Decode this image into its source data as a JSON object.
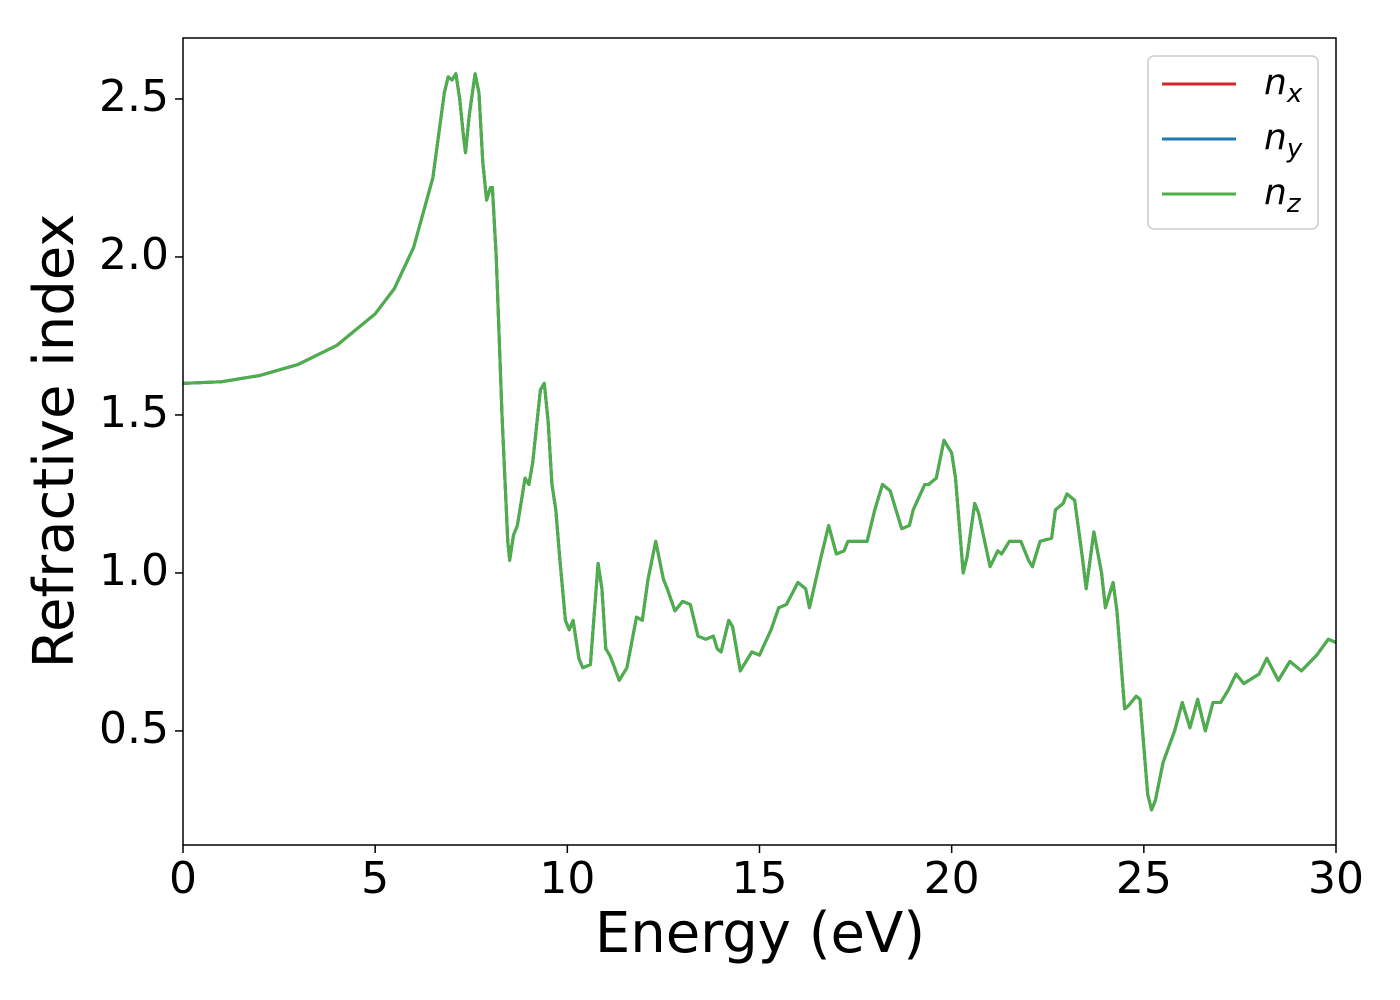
{
  "chart_data": {
    "type": "line",
    "xlabel": "Energy (eV)",
    "ylabel": "Refractive index",
    "xlim": [
      0,
      30
    ],
    "ylim": [
      0.139,
      2.693
    ],
    "xticks": [
      0,
      5,
      10,
      15,
      20,
      25,
      30
    ],
    "yticks": [
      0.5,
      {
        "value": 1,
        "label": "1.0"
      },
      1.5,
      {
        "value": 2,
        "label": "2.0"
      },
      2.5
    ],
    "legend": "upper right",
    "x": [
      0,
      1,
      2,
      3,
      4,
      5,
      5.5,
      6,
      6.5,
      6.8,
      6.9,
      7.0,
      7.1,
      7.2,
      7.3,
      7.35,
      7.45,
      7.6,
      7.7,
      7.8,
      7.9,
      8.0,
      8.05,
      8.15,
      8.3,
      8.45,
      8.5,
      8.6,
      8.7,
      8.9,
      9.0,
      9.1,
      9.3,
      9.4,
      9.5,
      9.6,
      9.7,
      9.8,
      9.95,
      10.05,
      10.15,
      10.3,
      10.4,
      10.6,
      10.75,
      10.8,
      10.9,
      11.0,
      11.1,
      11.2,
      11.35,
      11.55,
      11.8,
      11.95,
      12.1,
      12.3,
      12.5,
      12.6,
      12.8,
      13.0,
      13.2,
      13.4,
      13.6,
      13.8,
      13.9,
      14.0,
      14.2,
      14.3,
      14.5,
      14.8,
      15.0,
      15.3,
      15.5,
      15.7,
      16.0,
      16.2,
      16.3,
      16.6,
      16.8,
      17.0,
      17.2,
      17.3,
      17.5,
      17.8,
      18.0,
      18.2,
      18.4,
      18.7,
      18.9,
      19.0,
      19.3,
      19.4,
      19.6,
      19.8,
      20.0,
      20.1,
      20.3,
      20.4,
      20.6,
      20.7,
      21.0,
      21.2,
      21.3,
      21.5,
      21.8,
      22.0,
      22.1,
      22.3,
      22.6,
      22.7,
      22.9,
      23.0,
      23.2,
      23.4,
      23.5,
      23.7,
      23.9,
      24.0,
      24.2,
      24.3,
      24.5,
      24.6,
      24.8,
      24.9,
      25.0,
      25.1,
      25.2,
      25.3,
      25.5,
      25.8,
      26.0,
      26.2,
      26.4,
      26.6,
      26.8,
      27.0,
      27.2,
      27.4,
      27.6,
      28.0,
      28.2,
      28.5,
      28.8,
      29.1,
      29.5,
      29.8,
      30.0
    ],
    "series": [
      {
        "name": "n_x",
        "color": "#d62728",
        "values": [
          1.6,
          1.605,
          1.625,
          1.66,
          1.72,
          1.82,
          1.9,
          2.03,
          2.25,
          2.52,
          2.57,
          2.56,
          2.58,
          2.5,
          2.38,
          2.33,
          2.45,
          2.58,
          2.52,
          2.3,
          2.18,
          2.22,
          2.22,
          2.0,
          1.5,
          1.1,
          1.04,
          1.12,
          1.15,
          1.3,
          1.28,
          1.35,
          1.58,
          1.6,
          1.48,
          1.28,
          1.2,
          1.05,
          0.85,
          0.82,
          0.85,
          0.73,
          0.7,
          0.71,
          0.95,
          1.03,
          0.95,
          0.76,
          0.74,
          0.71,
          0.66,
          0.7,
          0.86,
          0.85,
          0.98,
          1.1,
          0.98,
          0.95,
          0.88,
          0.91,
          0.9,
          0.8,
          0.79,
          0.8,
          0.76,
          0.75,
          0.85,
          0.83,
          0.69,
          0.75,
          0.74,
          0.82,
          0.89,
          0.9,
          0.97,
          0.95,
          0.89,
          1.05,
          1.15,
          1.06,
          1.07,
          1.1,
          1.1,
          1.1,
          1.2,
          1.28,
          1.26,
          1.14,
          1.15,
          1.2,
          1.28,
          1.28,
          1.3,
          1.42,
          1.38,
          1.3,
          1.0,
          1.05,
          1.22,
          1.19,
          1.02,
          1.07,
          1.06,
          1.1,
          1.1,
          1.04,
          1.02,
          1.1,
          1.11,
          1.2,
          1.22,
          1.25,
          1.23,
          1.05,
          0.95,
          1.13,
          1.0,
          0.89,
          0.97,
          0.88,
          0.57,
          0.58,
          0.61,
          0.6,
          0.45,
          0.3,
          0.25,
          0.28,
          0.4,
          0.5,
          0.59,
          0.51,
          0.6,
          0.5,
          0.59,
          0.59,
          0.63,
          0.68,
          0.65,
          0.68,
          0.73,
          0.66,
          0.72,
          0.69,
          0.74,
          0.79,
          0.78
        ]
      },
      {
        "name": "n_y",
        "color": "#1f77b4",
        "values": [
          1.6,
          1.605,
          1.625,
          1.66,
          1.72,
          1.82,
          1.9,
          2.03,
          2.25,
          2.52,
          2.57,
          2.56,
          2.58,
          2.5,
          2.38,
          2.33,
          2.45,
          2.58,
          2.52,
          2.3,
          2.18,
          2.22,
          2.22,
          2.0,
          1.5,
          1.1,
          1.04,
          1.12,
          1.15,
          1.3,
          1.28,
          1.35,
          1.58,
          1.6,
          1.48,
          1.28,
          1.2,
          1.05,
          0.85,
          0.82,
          0.85,
          0.73,
          0.7,
          0.71,
          0.95,
          1.03,
          0.95,
          0.76,
          0.74,
          0.71,
          0.66,
          0.7,
          0.86,
          0.85,
          0.98,
          1.1,
          0.98,
          0.95,
          0.88,
          0.91,
          0.9,
          0.8,
          0.79,
          0.8,
          0.76,
          0.75,
          0.85,
          0.83,
          0.69,
          0.75,
          0.74,
          0.82,
          0.89,
          0.9,
          0.97,
          0.95,
          0.89,
          1.05,
          1.15,
          1.06,
          1.07,
          1.1,
          1.1,
          1.1,
          1.2,
          1.28,
          1.26,
          1.14,
          1.15,
          1.2,
          1.28,
          1.28,
          1.3,
          1.42,
          1.38,
          1.3,
          1.0,
          1.05,
          1.22,
          1.19,
          1.02,
          1.07,
          1.06,
          1.1,
          1.1,
          1.04,
          1.02,
          1.1,
          1.11,
          1.2,
          1.22,
          1.25,
          1.23,
          1.05,
          0.95,
          1.13,
          1.0,
          0.89,
          0.97,
          0.88,
          0.57,
          0.58,
          0.61,
          0.6,
          0.45,
          0.3,
          0.25,
          0.28,
          0.4,
          0.5,
          0.59,
          0.51,
          0.6,
          0.5,
          0.59,
          0.59,
          0.63,
          0.68,
          0.65,
          0.68,
          0.73,
          0.66,
          0.72,
          0.69,
          0.74,
          0.79,
          0.78
        ]
      },
      {
        "name": "n_z",
        "color": "#4daf4a",
        "values": [
          1.6,
          1.605,
          1.625,
          1.66,
          1.72,
          1.82,
          1.9,
          2.03,
          2.25,
          2.52,
          2.57,
          2.56,
          2.58,
          2.5,
          2.38,
          2.33,
          2.45,
          2.58,
          2.52,
          2.3,
          2.18,
          2.22,
          2.22,
          2.0,
          1.5,
          1.1,
          1.04,
          1.12,
          1.15,
          1.3,
          1.28,
          1.35,
          1.58,
          1.6,
          1.48,
          1.28,
          1.2,
          1.05,
          0.85,
          0.82,
          0.85,
          0.73,
          0.7,
          0.71,
          0.95,
          1.03,
          0.95,
          0.76,
          0.74,
          0.71,
          0.66,
          0.7,
          0.86,
          0.85,
          0.98,
          1.1,
          0.98,
          0.95,
          0.88,
          0.91,
          0.9,
          0.8,
          0.79,
          0.8,
          0.76,
          0.75,
          0.85,
          0.83,
          0.69,
          0.75,
          0.74,
          0.82,
          0.89,
          0.9,
          0.97,
          0.95,
          0.89,
          1.05,
          1.15,
          1.06,
          1.07,
          1.1,
          1.1,
          1.1,
          1.2,
          1.28,
          1.26,
          1.14,
          1.15,
          1.2,
          1.28,
          1.28,
          1.3,
          1.42,
          1.38,
          1.3,
          1.0,
          1.05,
          1.22,
          1.19,
          1.02,
          1.07,
          1.06,
          1.1,
          1.1,
          1.04,
          1.02,
          1.1,
          1.11,
          1.2,
          1.22,
          1.25,
          1.23,
          1.05,
          0.95,
          1.13,
          1.0,
          0.89,
          0.97,
          0.88,
          0.57,
          0.58,
          0.61,
          0.6,
          0.45,
          0.3,
          0.25,
          0.28,
          0.4,
          0.5,
          0.59,
          0.51,
          0.6,
          0.5,
          0.59,
          0.59,
          0.63,
          0.68,
          0.65,
          0.68,
          0.73,
          0.66,
          0.72,
          0.69,
          0.74,
          0.79,
          0.78
        ]
      }
    ]
  }
}
